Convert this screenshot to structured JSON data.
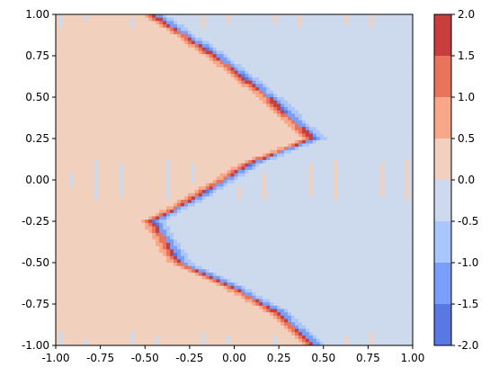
{
  "chart_data": {
    "type": "heatmap",
    "subtype": "filled-contour",
    "title": "",
    "xlabel": "",
    "ylabel": "",
    "xlim": [
      -1.0,
      1.0
    ],
    "ylim": [
      -1.0,
      1.0
    ],
    "grid": false,
    "x_ticks": [
      "-1.00",
      "-0.75",
      "-0.50",
      "-0.25",
      "0.00",
      "0.25",
      "0.50",
      "0.75",
      "1.00"
    ],
    "y_ticks": [
      "-1.00",
      "-0.75",
      "-0.50",
      "-0.25",
      "0.00",
      "0.25",
      "0.50",
      "0.75",
      "1.00"
    ],
    "colormap": "coolwarm",
    "colorbar": {
      "levels": [
        -2.0,
        -1.5,
        -1.0,
        -0.5,
        0.0,
        0.5,
        1.0,
        1.5,
        2.0
      ],
      "tick_labels": [
        "-2.0",
        "-1.5",
        "-1.0",
        "-0.5",
        "0.0",
        "0.5",
        "1.0",
        "1.5",
        "2.0"
      ],
      "colors": [
        "#5a78e4",
        "#7b9ff9",
        "#aac7fd",
        "#cdd9ec",
        "#f2d0be",
        "#f7a889",
        "#e7745b",
        "#c83e3c"
      ]
    },
    "boundary": {
      "description": "zigzag interface x = 0.5*|sin(pi*(y+0.25)... )|-shaped boundary",
      "points": [
        [
          -0.45,
          1.0
        ],
        [
          -0.1,
          0.75
        ],
        [
          0.2,
          0.5
        ],
        [
          0.45,
          0.25
        ],
        [
          0.1,
          0.1
        ],
        [
          -0.2,
          -0.1
        ],
        [
          -0.45,
          -0.25
        ],
        [
          -0.3,
          -0.5
        ],
        [
          0.0,
          -0.65
        ],
        [
          0.25,
          -0.8
        ],
        [
          0.45,
          -1.0
        ]
      ]
    },
    "left_region_value_band": [
      0.0,
      0.5
    ],
    "right_region_value_band": [
      -0.5,
      0.0
    ]
  }
}
